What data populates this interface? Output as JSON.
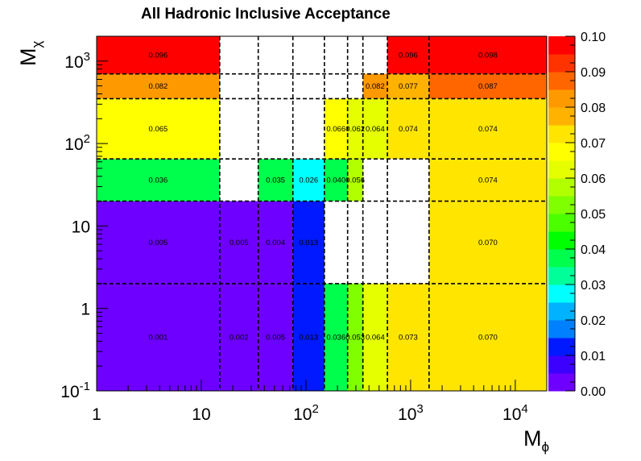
{
  "chart_data": {
    "type": "heatmap",
    "title": "All Hadronic Inclusive Acceptance",
    "xlabel": "M_ϕ",
    "ylabel": "M_χ",
    "xscale": "log",
    "yscale": "log",
    "xlim": [
      1,
      20000
    ],
    "ylim": [
      0.1,
      2000
    ],
    "x_tick_labels": [
      "1",
      "10",
      "10^2",
      "10^3",
      "10^4"
    ],
    "y_tick_labels": [
      "10^-1",
      "1",
      "10",
      "10^2",
      "10^3"
    ],
    "x_bin_edges": [
      1,
      15,
      35,
      75,
      150,
      250,
      350,
      600,
      1500,
      20000
    ],
    "y_bin_edges": [
      0.1,
      2,
      20,
      65,
      350,
      700,
      2000
    ],
    "cells": [
      {
        "xbin": 0,
        "ybin": 0,
        "value": 0.001,
        "label": "0.001"
      },
      {
        "xbin": 1,
        "ybin": 0,
        "value": 0.002,
        "label": "0.002"
      },
      {
        "xbin": 2,
        "ybin": 0,
        "value": 0.005,
        "label": "0.005"
      },
      {
        "xbin": 3,
        "ybin": 0,
        "value": 0.013,
        "label": "0.013"
      },
      {
        "xbin": 4,
        "ybin": 0,
        "value": 0.036,
        "label": "0.036"
      },
      {
        "xbin": 5,
        "ybin": 0,
        "value": 0.053,
        "label": "0.053"
      },
      {
        "xbin": 6,
        "ybin": 0,
        "value": 0.064,
        "label": "0.064"
      },
      {
        "xbin": 7,
        "ybin": 0,
        "value": 0.073,
        "label": "0.073"
      },
      {
        "xbin": 8,
        "ybin": 0,
        "value": 0.07,
        "label": "0.070"
      },
      {
        "xbin": 0,
        "ybin": 1,
        "value": 0.005,
        "label": "0.005"
      },
      {
        "xbin": 1,
        "ybin": 1,
        "value": 0.005,
        "label": "0.005"
      },
      {
        "xbin": 2,
        "ybin": 1,
        "value": 0.004,
        "label": "0.004"
      },
      {
        "xbin": 3,
        "ybin": 1,
        "value": 0.013,
        "label": "0.013"
      },
      {
        "xbin": 8,
        "ybin": 1,
        "value": 0.07,
        "label": "0.070"
      },
      {
        "xbin": 0,
        "ybin": 2,
        "value": 0.036,
        "label": "0.036"
      },
      {
        "xbin": 2,
        "ybin": 2,
        "value": 0.035,
        "label": "0.035"
      },
      {
        "xbin": 3,
        "ybin": 2,
        "value": 0.026,
        "label": "0.026"
      },
      {
        "xbin": 4,
        "ybin": 2,
        "value": 0.04,
        "label": "0.040"
      },
      {
        "xbin": 5,
        "ybin": 2,
        "value": 0.056,
        "label": "0.056"
      },
      {
        "xbin": 8,
        "ybin": 2,
        "value": 0.074,
        "label": "0.074"
      },
      {
        "xbin": 0,
        "ybin": 3,
        "value": 0.065,
        "label": "0.065"
      },
      {
        "xbin": 4,
        "ybin": 3,
        "value": 0.066,
        "label": "0.066"
      },
      {
        "xbin": 5,
        "ybin": 3,
        "value": 0.062,
        "label": "0.062"
      },
      {
        "xbin": 6,
        "ybin": 3,
        "value": 0.064,
        "label": "0.064"
      },
      {
        "xbin": 7,
        "ybin": 3,
        "value": 0.074,
        "label": "0.074"
      },
      {
        "xbin": 8,
        "ybin": 3,
        "value": 0.074,
        "label": "0.074"
      },
      {
        "xbin": 0,
        "ybin": 4,
        "value": 0.082,
        "label": "0.082"
      },
      {
        "xbin": 6,
        "ybin": 4,
        "value": 0.082,
        "label": "0.082"
      },
      {
        "xbin": 7,
        "ybin": 4,
        "value": 0.077,
        "label": "0.077"
      },
      {
        "xbin": 8,
        "ybin": 4,
        "value": 0.087,
        "label": "0.087"
      },
      {
        "xbin": 0,
        "ybin": 5,
        "value": 0.096,
        "label": "0.096"
      },
      {
        "xbin": 7,
        "ybin": 5,
        "value": 0.096,
        "label": "0.096"
      },
      {
        "xbin": 8,
        "ybin": 5,
        "value": 0.098,
        "label": "0.098"
      }
    ],
    "colorbar": {
      "min": 0.0,
      "max": 0.1,
      "labels": [
        "0.00",
        "0.01",
        "0.02",
        "0.03",
        "0.04",
        "0.05",
        "0.06",
        "0.07",
        "0.08",
        "0.09",
        "0.10"
      ],
      "colors": [
        "#6e00ff",
        "#3c00ff",
        "#0019ff",
        "#007fff",
        "#00b2ff",
        "#00ffff",
        "#00ff99",
        "#00ff4c",
        "#00ff00",
        "#4cff00",
        "#7fff00",
        "#b2ff00",
        "#e5ff00",
        "#ffff00",
        "#ffe500",
        "#ffb200",
        "#ff9900",
        "#ff6600",
        "#ff3300",
        "#ff0000"
      ]
    },
    "grid": "dashed bin boundaries",
    "legend": "colorbar-right"
  }
}
